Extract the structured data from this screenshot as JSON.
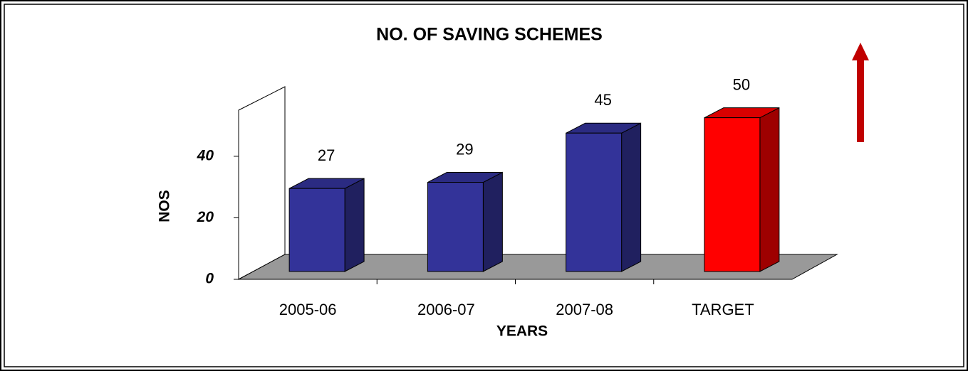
{
  "chart_data": {
    "type": "bar3d",
    "title": "NO. OF SAVING SCHEMES",
    "categories": [
      "2005-06",
      "2006-07",
      "2007-08",
      "TARGET"
    ],
    "values": [
      27,
      29,
      45,
      50
    ],
    "colors": [
      "#333399",
      "#333399",
      "#333399",
      "#ff0000"
    ],
    "ylim": [
      0,
      55
    ],
    "yticks": [
      0,
      20,
      40
    ],
    "xlabel": "YEARS",
    "ylabel": "NOS"
  }
}
